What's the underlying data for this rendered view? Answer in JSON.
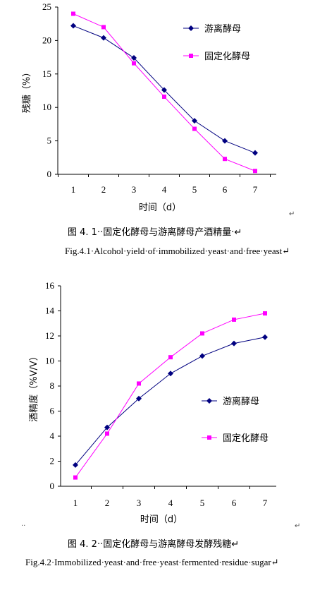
{
  "captions": [
    {
      "cn": "图 4. 1··固定化酵母与游离酵母产酒精量·↵",
      "en": "Fig.4.1·Alcohol·yield·of·immobilized·yeast·and·free·yeast↵"
    },
    {
      "cn": "图 4. 2··固定化酵母与游离酵母发酵残糖↵",
      "en": "Fig.4.2·Immobilized·yeast·and·free·yeast·fermented·residue·sugar↵"
    }
  ],
  "marks": [
    "↵",
    "↵",
    "··"
  ],
  "colors": {
    "free": "#000080",
    "immobilized": "#ff00ff"
  },
  "chart_data": [
    {
      "type": "line",
      "title": "",
      "xlabel": "时间（d）",
      "ylabel": "残糖（%）",
      "categories": [
        "1",
        "2",
        "3",
        "4",
        "5",
        "6",
        "7"
      ],
      "yticks": [
        "0",
        "5",
        "10",
        "15",
        "20",
        "25"
      ],
      "ylim": [
        0,
        25
      ],
      "legend_position": "right",
      "series": [
        {
          "name": "游离酵母",
          "values": [
            22.2,
            20.4,
            17.4,
            12.6,
            8.0,
            5.0,
            3.2
          ],
          "marker": "diamond",
          "color": "#000080"
        },
        {
          "name": "固定化酵母",
          "values": [
            24.0,
            22.0,
            16.6,
            11.6,
            6.8,
            2.3,
            0.5
          ],
          "marker": "square",
          "color": "#ff00ff"
        }
      ]
    },
    {
      "type": "line",
      "title": "",
      "xlabel": "时间（d）",
      "ylabel": "酒精度（%V/V）",
      "categories": [
        "1",
        "2",
        "3",
        "4",
        "5",
        "6",
        "7"
      ],
      "yticks": [
        "0",
        "2",
        "4",
        "6",
        "8",
        "10",
        "12",
        "14",
        "16"
      ],
      "ylim": [
        0,
        16
      ],
      "legend_position": "right",
      "series": [
        {
          "name": "游离酵母",
          "values": [
            1.7,
            4.7,
            7.0,
            9.0,
            10.4,
            11.4,
            11.9
          ],
          "marker": "diamond",
          "color": "#000080"
        },
        {
          "name": "固定化酵母",
          "values": [
            0.7,
            4.2,
            8.2,
            10.3,
            12.2,
            13.3,
            13.8
          ],
          "marker": "square",
          "color": "#ff00ff"
        }
      ]
    }
  ]
}
